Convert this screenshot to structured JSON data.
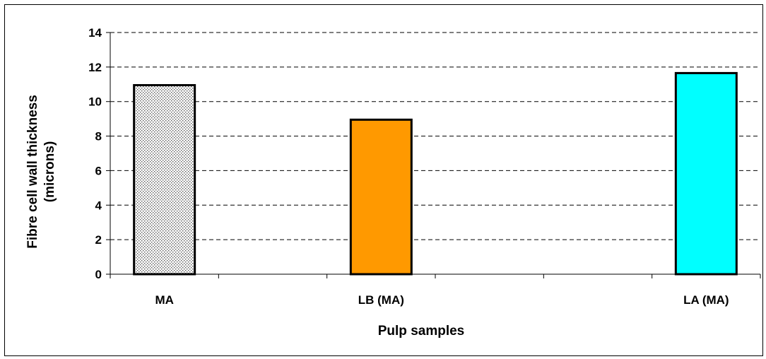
{
  "chart_data": {
    "type": "bar",
    "categories": [
      "MA",
      "LB (MA)",
      "LA (MA)"
    ],
    "values": [
      10.95,
      8.95,
      11.65
    ],
    "category_slots": [
      0,
      2,
      5
    ],
    "slot_count": 6,
    "xlabel": "Pulp samples",
    "ylabel": "Fibre cell wall thickness\n(microns)",
    "ylim": [
      0,
      14
    ],
    "yticks": [
      0,
      2,
      4,
      6,
      8,
      10,
      12,
      14
    ],
    "grid": "horizontal dashed",
    "legend": "none",
    "bar_colors": [
      "dotted-gray",
      "#FF9900",
      "#00FFFF"
    ]
  }
}
